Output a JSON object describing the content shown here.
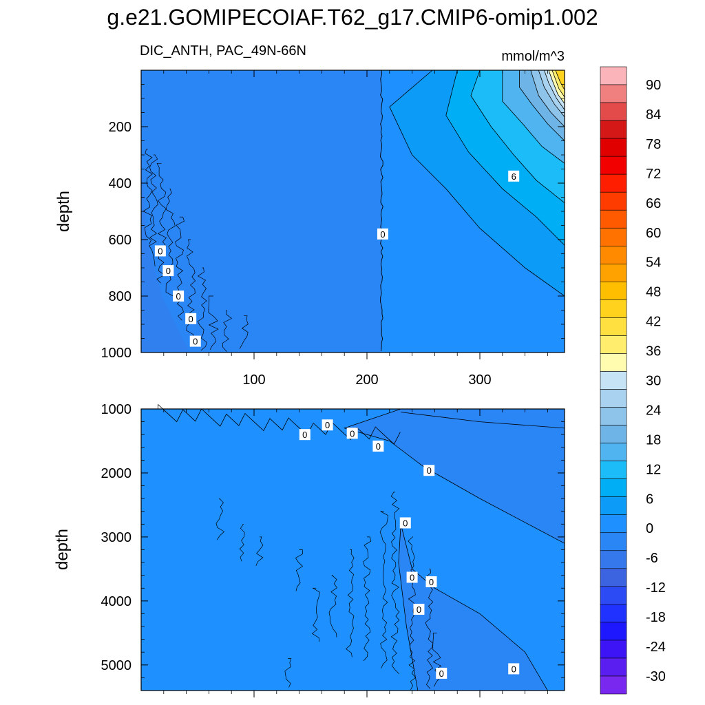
{
  "figure_title": "g.e21.GOMIPECOIAF.T62_g17.CMIP6-omip1.002",
  "colors": {
    "background": "#ffffff",
    "zero_fill": "#1e90ff",
    "neg_fill": "#2a85f5",
    "contour_line": "#000000"
  },
  "chart_data": [
    {
      "type": "filled-contour",
      "panel": "upper",
      "variable": "DIC_ANTH",
      "region": "PAC_49N-66N",
      "units": "mmol/m^3",
      "left_title": "DIC_ANTH, PAC_49N-66N",
      "right_title": "mmol/m^3",
      "xlabel": "",
      "ylabel": "depth",
      "xlim": [
        0,
        375
      ],
      "ylim": [
        1000,
        0
      ],
      "x_ticks": [
        100,
        200,
        300
      ],
      "y_ticks": [
        200,
        400,
        600,
        800,
        1000
      ],
      "contour_labels": [
        {
          "text": "0",
          "x": 214,
          "y": 580
        },
        {
          "text": "6",
          "x": 330,
          "y": 375
        },
        {
          "text": "0",
          "x": 17,
          "y": 640
        },
        {
          "text": "0",
          "x": 24,
          "y": 710
        },
        {
          "text": "0",
          "x": 33,
          "y": 800
        },
        {
          "text": "0",
          "x": 44,
          "y": 880
        },
        {
          "text": "0",
          "x": 48,
          "y": 960
        }
      ]
    },
    {
      "type": "filled-contour",
      "panel": "lower",
      "variable": "DIC_ANTH",
      "region": "PAC_49N-66N",
      "units": "mmol/m^3",
      "xlabel": "",
      "ylabel": "depth",
      "xlim": [
        0,
        375
      ],
      "ylim": [
        5400,
        1000
      ],
      "x_ticks": [
        100,
        200,
        300
      ],
      "y_ticks": [
        1000,
        2000,
        3000,
        4000,
        5000
      ],
      "contour_labels": [
        {
          "text": "0",
          "x": 145,
          "y": 1400
        },
        {
          "text": "0",
          "x": 165,
          "y": 1250
        },
        {
          "text": "0",
          "x": 187,
          "y": 1380
        },
        {
          "text": "0",
          "x": 210,
          "y": 1580
        },
        {
          "text": "0",
          "x": 255,
          "y": 1960
        },
        {
          "text": "0",
          "x": 234,
          "y": 2780
        },
        {
          "text": "0",
          "x": 240,
          "y": 3630
        },
        {
          "text": "0",
          "x": 257,
          "y": 3700
        },
        {
          "text": "0",
          "x": 246,
          "y": 4130
        },
        {
          "text": "0",
          "x": 266,
          "y": 5130
        },
        {
          "text": "0",
          "x": 330,
          "y": 5060
        }
      ]
    }
  ],
  "colorbar": {
    "labels": [
      "90",
      "84",
      "78",
      "72",
      "66",
      "60",
      "54",
      "48",
      "42",
      "36",
      "30",
      "24",
      "18",
      "12",
      "6",
      "0",
      "-6",
      "-12",
      "-18",
      "-24",
      "-30"
    ],
    "colors": [
      "#fbb4b9",
      "#f08080",
      "#e34a4a",
      "#d41818",
      "#e00000",
      "#f20000",
      "#ff1e00",
      "#ff3c00",
      "#ff5a00",
      "#ff7200",
      "#ff8a00",
      "#ffa200",
      "#ffbe00",
      "#ffd21e",
      "#ffe040",
      "#ffee6e",
      "#fffbaf",
      "#c6e2f5",
      "#a8d2ef",
      "#8ec3ea",
      "#6fb4e6",
      "#4fb4f0",
      "#1bbcf7",
      "#00aef5",
      "#0c9cf7",
      "#1e90ff",
      "#2a85f5",
      "#3478eb",
      "#3c64e0",
      "#2d4bf5",
      "#1f32ff",
      "#1e18ff",
      "#3c14f5",
      "#5a1ef0",
      "#7828ef"
    ]
  }
}
